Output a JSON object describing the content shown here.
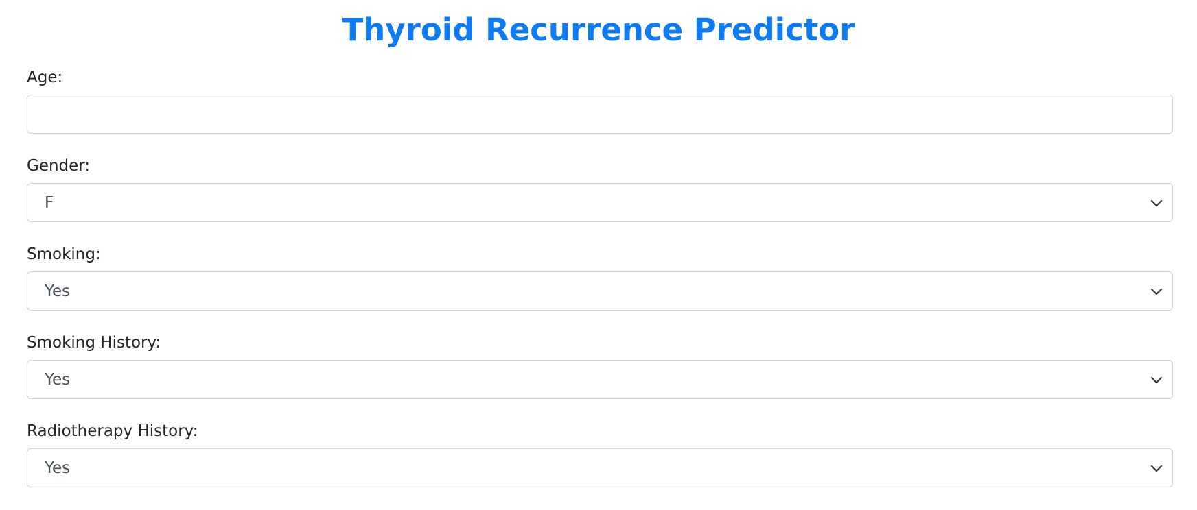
{
  "page": {
    "title": "Thyroid Recurrence Predictor"
  },
  "form": {
    "age": {
      "label": "Age:",
      "value": "",
      "placeholder": ""
    },
    "gender": {
      "label": "Gender:",
      "selected": "F"
    },
    "smoking": {
      "label": "Smoking:",
      "selected": "Yes"
    },
    "smoking_history": {
      "label": "Smoking History:",
      "selected": "Yes"
    },
    "radiotherapy_history": {
      "label": "Radiotherapy History:",
      "selected": "Yes"
    }
  },
  "colors": {
    "title": "#0d7cf2",
    "border": "#ced4da",
    "label_text": "#212529",
    "select_text": "#495057"
  },
  "icons": {
    "select_arrow": "chevron-down-icon"
  }
}
